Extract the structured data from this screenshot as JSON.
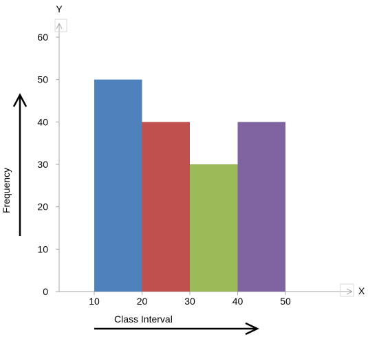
{
  "chart_data": {
    "type": "histogram",
    "xlabel": "Class Interval",
    "ylabel": "Frequency",
    "x_axis_letter": "X",
    "y_axis_letter": "Y",
    "bins": [
      {
        "range": [
          10,
          20
        ],
        "value": 50,
        "color": "#4F81BD"
      },
      {
        "range": [
          20,
          30
        ],
        "value": 40,
        "color": "#C0504D"
      },
      {
        "range": [
          30,
          40
        ],
        "value": 30,
        "color": "#9BBB59"
      },
      {
        "range": [
          40,
          50
        ],
        "value": 40,
        "color": "#8064A2"
      }
    ],
    "x_ticks": [
      "10",
      "20",
      "30",
      "40",
      "50"
    ],
    "y_ticks": [
      "0",
      "10",
      "20",
      "30",
      "40",
      "50",
      "60"
    ],
    "ylim": [
      0,
      60
    ],
    "grid": false,
    "legend": "none"
  }
}
